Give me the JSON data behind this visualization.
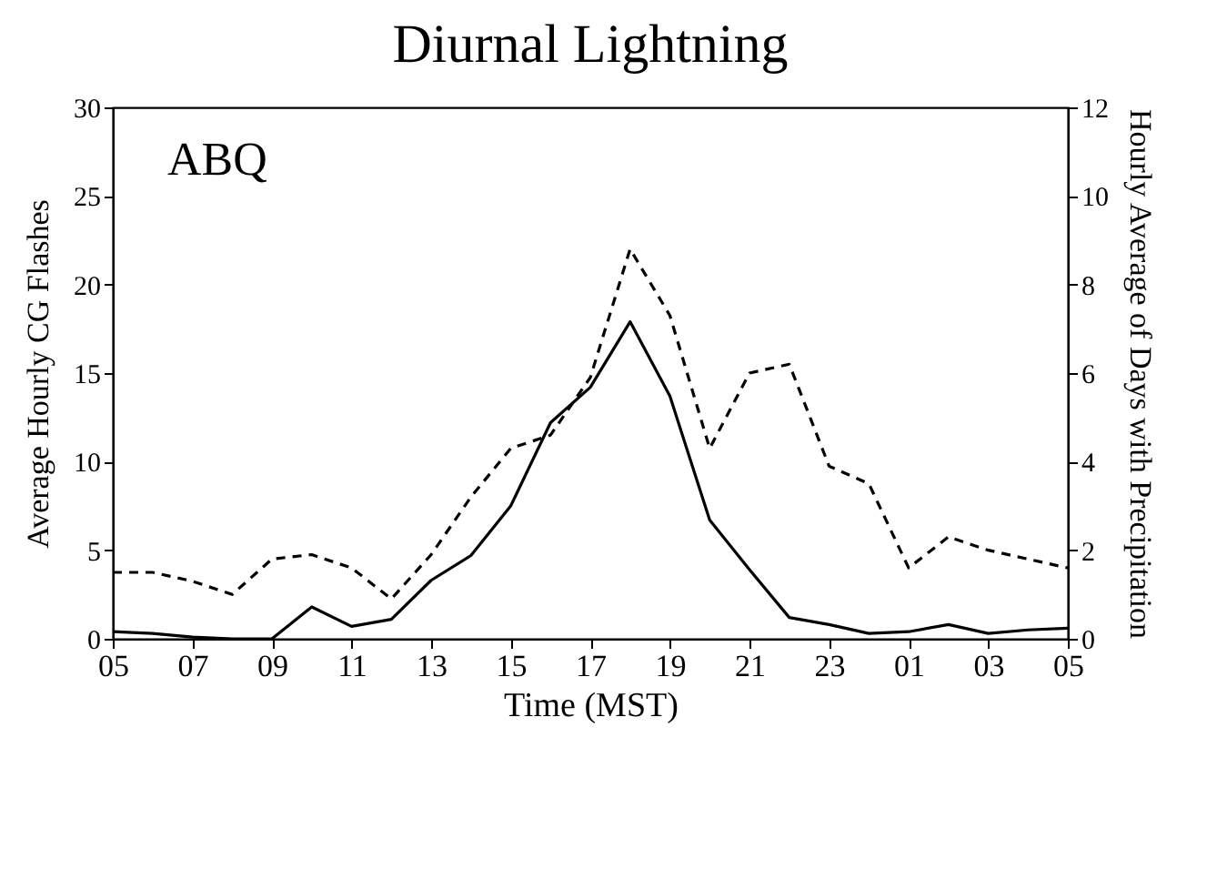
{
  "chart_data": {
    "type": "line",
    "title": "Diurnal Lightning",
    "xlabel": "Time (MST)",
    "ylabel": "Average Hourly CG Flashes",
    "y2label": "Hourly Average of Days with Precipitation",
    "annotations": [
      "ABQ"
    ],
    "categories": [
      "05",
      null,
      "07",
      null,
      "09",
      null,
      "11",
      null,
      "13",
      null,
      "15",
      null,
      "17",
      null,
      "19",
      null,
      "21",
      null,
      "23",
      null,
      "01",
      null,
      "03",
      null,
      "05"
    ],
    "series": [
      {
        "color": "#000000",
        "line_style": "solid",
        "values": [
          0.4,
          0.3,
          0.1,
          0,
          0,
          1.8,
          0.7,
          1.1,
          3.3,
          4.7,
          7.5,
          12.2,
          14.2,
          17.9,
          13.7,
          6.7,
          3.9,
          1.2,
          0.8,
          0.3,
          0.4,
          0.8,
          0.3,
          0.5,
          0.6
        ]
      },
      {
        "color": "#000000",
        "line_style": "dashed",
        "axis": "y2",
        "values": [
          1.5,
          1.5,
          1.3,
          1.0,
          1.8,
          1.9,
          1.6,
          0.9,
          1.9,
          3.2,
          4.3,
          4.6,
          5.9,
          8.8,
          7.3,
          4.3,
          6.0,
          6.2,
          3.9,
          3.5,
          1.6,
          2.3,
          2.0,
          1.8,
          1.6
        ]
      }
    ],
    "ylim": [
      0,
      30
    ],
    "yticks": [
      0,
      5,
      10,
      15,
      20,
      25,
      30
    ],
    "y2lim": [
      0,
      12
    ],
    "y2ticks": [
      0,
      2,
      4,
      6,
      8,
      10,
      12
    ],
    "grid": false
  }
}
